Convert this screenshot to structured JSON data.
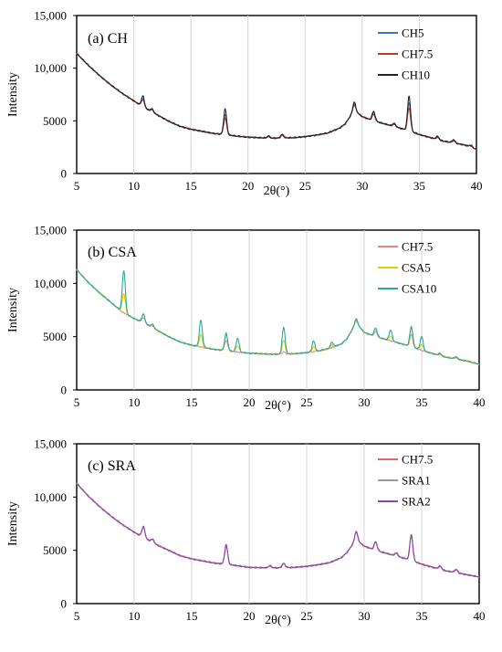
{
  "figure": {
    "panels": [
      {
        "id": "a",
        "label": "(a) CH",
        "ylabel": "Intensity",
        "xlabel": "2θ(°)",
        "yticks": [
          "0",
          "5000",
          "10,000",
          "15,000"
        ],
        "xticks": [
          "5",
          "10",
          "15",
          "20",
          "25",
          "30",
          "35",
          "40"
        ]
      },
      {
        "id": "b",
        "label": "(b) CSA",
        "ylabel": "Intensity",
        "xlabel": "2θ(°)",
        "yticks": [
          "0",
          "5000",
          "10,000",
          "15,000"
        ],
        "xticks": [
          "5",
          "10",
          "15",
          "20",
          "25",
          "30",
          "35",
          "40"
        ]
      },
      {
        "id": "c",
        "label": "(c) SRA",
        "ylabel": "Intensity",
        "xlabel": "2θ(°)",
        "yticks": [
          "0",
          "5000",
          "10,000",
          "15,000"
        ],
        "xticks": [
          "5",
          "10",
          "15",
          "20",
          "25",
          "30",
          "35",
          "40"
        ]
      }
    ]
  },
  "chart_data": [
    {
      "type": "line",
      "title": "(a) CH",
      "xlabel": "2θ(°)",
      "ylabel": "Intensity",
      "xlim": [
        5,
        40
      ],
      "ylim": [
        0,
        15000
      ],
      "grid": "vertical",
      "legend": "top-right",
      "series": [
        {
          "name": "CH5",
          "color": "#3b6fd1",
          "peak_scale": 0.8
        },
        {
          "name": "CH7.5",
          "color": "#c0392b",
          "peak_scale": 0.65
        },
        {
          "name": "CH10",
          "color": "#222222",
          "peak_scale": 1.0
        }
      ],
      "baseline": [
        [
          5,
          11400
        ],
        [
          6,
          10300
        ],
        [
          7,
          9300
        ],
        [
          8,
          8400
        ],
        [
          9,
          7600
        ],
        [
          10,
          6900
        ],
        [
          11,
          6200
        ],
        [
          12,
          5600
        ],
        [
          13,
          5000
        ],
        [
          14,
          4500
        ],
        [
          15,
          4200
        ],
        [
          16,
          4000
        ],
        [
          17,
          3800
        ],
        [
          18,
          3700
        ],
        [
          19,
          3550
        ],
        [
          20,
          3450
        ],
        [
          22,
          3350
        ],
        [
          24,
          3400
        ],
        [
          25,
          3500
        ],
        [
          26,
          3650
        ],
        [
          27,
          3850
        ],
        [
          28,
          4300
        ],
        [
          28.5,
          4700
        ],
        [
          29.3,
          6000
        ],
        [
          30,
          5400
        ],
        [
          31,
          5000
        ],
        [
          32,
          4700
        ],
        [
          33,
          4400
        ],
        [
          34,
          4100
        ],
        [
          35,
          3700
        ],
        [
          36,
          3400
        ],
        [
          37,
          3100
        ],
        [
          38,
          2900
        ],
        [
          39,
          2700
        ],
        [
          40,
          2300
        ]
      ],
      "peaks": [
        [
          10.8,
          1000
        ],
        [
          11.6,
          300
        ],
        [
          18.0,
          2400
        ],
        [
          21.8,
          200
        ],
        [
          23.0,
          350
        ],
        [
          29.3,
          800
        ],
        [
          31.0,
          900
        ],
        [
          32.8,
          300
        ],
        [
          34.1,
          3300
        ],
        [
          36.6,
          300
        ],
        [
          38.0,
          300
        ],
        [
          39.5,
          200
        ]
      ]
    },
    {
      "type": "line",
      "title": "(b) CSA",
      "xlabel": "2θ(°)",
      "ylabel": "Intensity",
      "xlim": [
        5,
        40
      ],
      "ylim": [
        0,
        15000
      ],
      "grid": "vertical",
      "legend": "top-right",
      "series": [
        {
          "name": "CH7.5",
          "color": "#e8858a",
          "peak_scale": 0.6,
          "csa_scale": 0.0
        },
        {
          "name": "CSA5",
          "color": "#e0d000",
          "peak_scale": 0.95,
          "csa_scale": 0.45
        },
        {
          "name": "CSA10",
          "color": "#2aa8a0",
          "peak_scale": 1.0,
          "csa_scale": 1.0
        }
      ],
      "baseline": [
        [
          5,
          11300
        ],
        [
          6,
          10100
        ],
        [
          7,
          9100
        ],
        [
          8,
          8200
        ],
        [
          9,
          7300
        ],
        [
          10,
          6700
        ],
        [
          11,
          6200
        ],
        [
          12,
          5600
        ],
        [
          13,
          5000
        ],
        [
          14,
          4500
        ],
        [
          15,
          4200
        ],
        [
          16,
          4000
        ],
        [
          17,
          3800
        ],
        [
          18,
          3700
        ],
        [
          19,
          3550
        ],
        [
          20,
          3450
        ],
        [
          22,
          3350
        ],
        [
          24,
          3400
        ],
        [
          25,
          3500
        ],
        [
          26,
          3650
        ],
        [
          27,
          3900
        ],
        [
          28,
          4300
        ],
        [
          28.5,
          4800
        ],
        [
          29.3,
          6300
        ],
        [
          30,
          5400
        ],
        [
          31,
          5000
        ],
        [
          32,
          4700
        ],
        [
          33,
          4400
        ],
        [
          34,
          4100
        ],
        [
          35,
          3700
        ],
        [
          36,
          3400
        ],
        [
          37,
          3100
        ],
        [
          38,
          2900
        ],
        [
          39,
          2700
        ],
        [
          40,
          2400
        ]
      ],
      "peaks": [
        [
          10.8,
          800
        ],
        [
          11.6,
          300
        ],
        [
          18.0,
          1600
        ],
        [
          23.0,
          300
        ],
        [
          29.3,
          400
        ],
        [
          31.0,
          800
        ],
        [
          34.1,
          1900
        ],
        [
          36.6,
          200
        ],
        [
          38.0,
          200
        ]
      ],
      "csa_peaks": [
        [
          9.1,
          4000
        ],
        [
          15.8,
          2500
        ],
        [
          19.0,
          1300
        ],
        [
          23.0,
          2200
        ],
        [
          25.6,
          1000
        ],
        [
          27.2,
          500
        ],
        [
          32.3,
          1000
        ],
        [
          35.0,
          1300
        ]
      ]
    },
    {
      "type": "line",
      "title": "(c) SRA",
      "xlabel": "2θ(°)",
      "ylabel": "Intensity",
      "xlim": [
        5,
        40
      ],
      "ylim": [
        0,
        15000
      ],
      "grid": "vertical",
      "legend": "top-right",
      "series": [
        {
          "name": "CH7.5",
          "color": "#e06666",
          "peak_scale": 0.95
        },
        {
          "name": "SRA1",
          "color": "#9a9a9a",
          "peak_scale": 1.0
        },
        {
          "name": "SRA2",
          "color": "#8e44ad",
          "peak_scale": 1.0
        }
      ],
      "baseline": [
        [
          5,
          11300
        ],
        [
          6,
          10100
        ],
        [
          7,
          9100
        ],
        [
          8,
          8200
        ],
        [
          9,
          7400
        ],
        [
          10,
          6700
        ],
        [
          11,
          6100
        ],
        [
          12,
          5500
        ],
        [
          13,
          5000
        ],
        [
          14,
          4500
        ],
        [
          15,
          4200
        ],
        [
          16,
          4000
        ],
        [
          17,
          3800
        ],
        [
          18,
          3700
        ],
        [
          19,
          3550
        ],
        [
          20,
          3400
        ],
        [
          22,
          3350
        ],
        [
          24,
          3400
        ],
        [
          25,
          3500
        ],
        [
          26,
          3650
        ],
        [
          27,
          3850
        ],
        [
          28,
          4300
        ],
        [
          28.5,
          4800
        ],
        [
          29.3,
          6000
        ],
        [
          30,
          5400
        ],
        [
          31,
          5000
        ],
        [
          32,
          4700
        ],
        [
          33,
          4400
        ],
        [
          34,
          4100
        ],
        [
          35,
          3700
        ],
        [
          36,
          3400
        ],
        [
          37,
          3100
        ],
        [
          38,
          2900
        ],
        [
          39,
          2700
        ],
        [
          40,
          2500
        ]
      ],
      "peaks": [
        [
          10.8,
          1000
        ],
        [
          11.6,
          300
        ],
        [
          18.0,
          1800
        ],
        [
          21.8,
          200
        ],
        [
          23.0,
          400
        ],
        [
          29.3,
          800
        ],
        [
          31.0,
          800
        ],
        [
          32.8,
          300
        ],
        [
          34.1,
          2400
        ],
        [
          36.6,
          300
        ],
        [
          38.0,
          300
        ]
      ]
    }
  ]
}
